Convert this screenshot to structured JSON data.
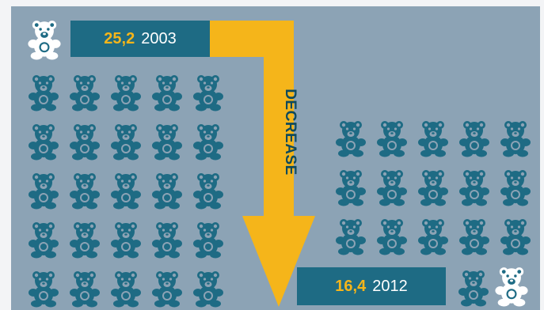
{
  "stat_2003": {
    "value": "25,2",
    "year": "2003"
  },
  "stat_2012": {
    "value": "16,4",
    "year": "2012"
  },
  "arrow": {
    "label": "DECREASE"
  },
  "icons": {
    "bear_icon": "teddy-bear-icon"
  },
  "colors": {
    "panel_background": "#8ca3b5",
    "bear": "#1e6b84",
    "legend_bear": "#ffffff",
    "arrow": "#f5b51a",
    "value_highlight": "#f5b51a",
    "label_box": "#1e6b84"
  }
}
